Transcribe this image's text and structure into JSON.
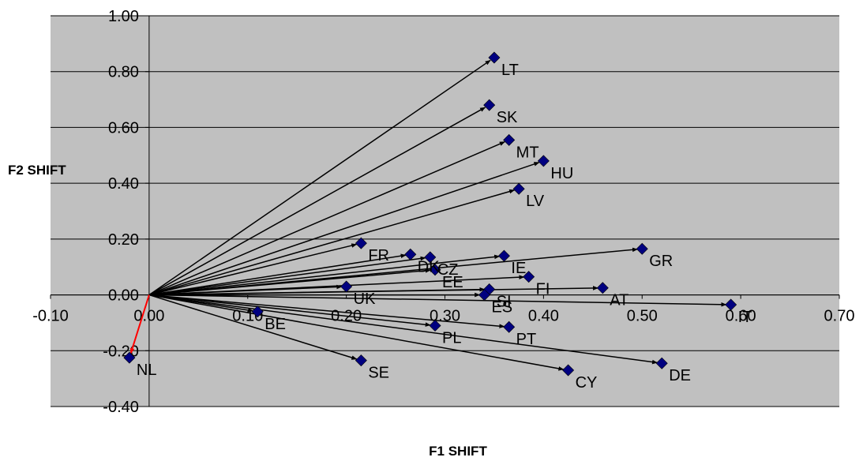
{
  "chart_data": {
    "type": "scatter",
    "xlabel": "F1 SHIFT",
    "ylabel": "F2 SHIFT",
    "xlim": [
      -0.1,
      0.7
    ],
    "ylim": [
      -0.4,
      1.0
    ],
    "x_ticks": [
      "-0.10",
      "0.00",
      "0.10",
      "0.20",
      "0.30",
      "0.40",
      "0.50",
      "0.60",
      "0.70"
    ],
    "y_ticks": [
      "-0.40",
      "-0.20",
      "0.00",
      "0.20",
      "0.40",
      "0.60",
      "0.80",
      "1.00"
    ],
    "grid": true,
    "legend": "none",
    "origin": [
      0.0,
      0.0
    ],
    "points": [
      {
        "label": "LT",
        "x": 0.35,
        "y": 0.85
      },
      {
        "label": "SK",
        "x": 0.345,
        "y": 0.68
      },
      {
        "label": "MT",
        "x": 0.365,
        "y": 0.555
      },
      {
        "label": "HU",
        "x": 0.4,
        "y": 0.48
      },
      {
        "label": "LV",
        "x": 0.375,
        "y": 0.38
      },
      {
        "label": "FR",
        "x": 0.215,
        "y": 0.185
      },
      {
        "label": "DK",
        "x": 0.265,
        "y": 0.145
      },
      {
        "label": "CZ",
        "x": 0.285,
        "y": 0.135
      },
      {
        "label": "IE",
        "x": 0.36,
        "y": 0.14
      },
      {
        "label": "GR",
        "x": 0.5,
        "y": 0.165
      },
      {
        "label": "EE",
        "x": 0.29,
        "y": 0.09
      },
      {
        "label": "FI",
        "x": 0.385,
        "y": 0.065
      },
      {
        "label": "UK",
        "x": 0.2,
        "y": 0.03
      },
      {
        "label": "SI",
        "x": 0.345,
        "y": 0.02
      },
      {
        "label": "ES",
        "x": 0.34,
        "y": 0.0
      },
      {
        "label": "AT",
        "x": 0.46,
        "y": 0.025
      },
      {
        "label": "IT",
        "x": 0.59,
        "y": -0.035
      },
      {
        "label": "BE",
        "x": 0.11,
        "y": -0.06
      },
      {
        "label": "PL",
        "x": 0.29,
        "y": -0.11
      },
      {
        "label": "PT",
        "x": 0.365,
        "y": -0.115
      },
      {
        "label": "DE",
        "x": 0.52,
        "y": -0.245
      },
      {
        "label": "CY",
        "x": 0.425,
        "y": -0.27
      },
      {
        "label": "SE",
        "x": 0.215,
        "y": -0.235
      },
      {
        "label": "NL",
        "x": -0.02,
        "y": -0.225
      }
    ],
    "colors": {
      "plot_bg": "#c0c0c0",
      "marker": "#000080",
      "arrow": "#000000",
      "highlight_arrow": "#ff0000"
    },
    "highlight": "NL"
  }
}
